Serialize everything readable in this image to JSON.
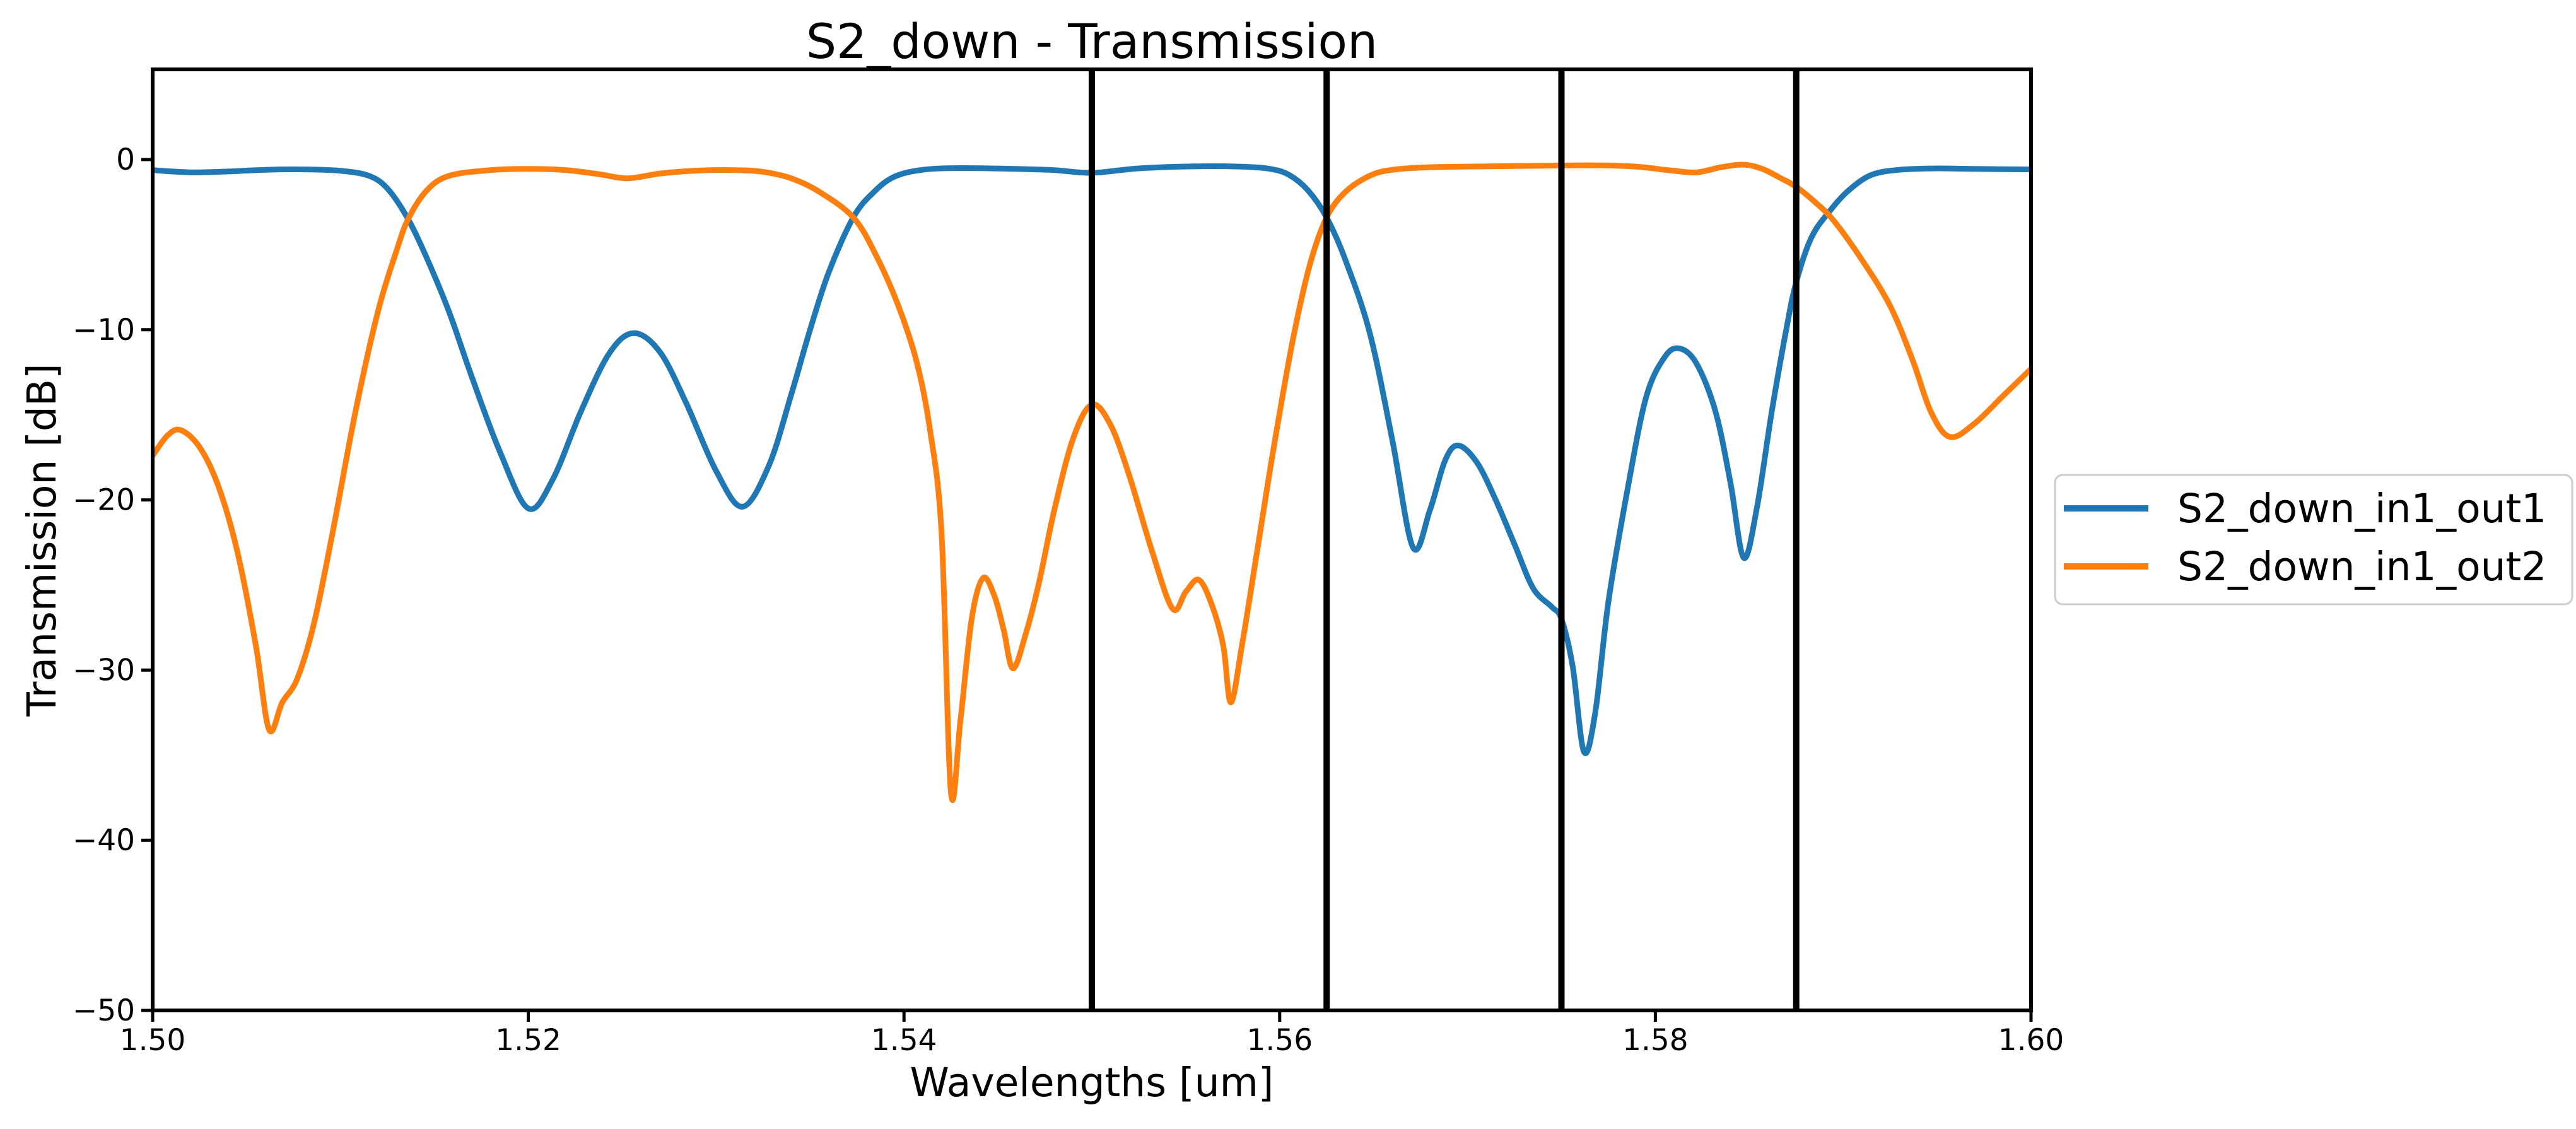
{
  "figure": {
    "background": "#ffffff",
    "spine_color": "#000000",
    "tick_color": "#000000"
  },
  "chart_data": {
    "type": "line",
    "title": "S2_down - Transmission",
    "xlabel": "Wavelengths [um]",
    "ylabel": "Transmission [dB]",
    "xlim": [
      1.5,
      1.6
    ],
    "ylim": [
      -50,
      5.3
    ],
    "grid": false,
    "xticks": {
      "values": [
        1.5,
        1.52,
        1.54,
        1.56,
        1.58,
        1.6
      ],
      "labels": [
        "1.50",
        "1.52",
        "1.54",
        "1.56",
        "1.58",
        "1.60"
      ]
    },
    "yticks": {
      "values": [
        0,
        -10,
        -20,
        -30,
        -40,
        -50
      ],
      "labels": [
        "0",
        "−10",
        "−20",
        "−30",
        "−40",
        "−50"
      ]
    },
    "vlines": {
      "x": [
        1.55,
        1.5625,
        1.575,
        1.5875
      ],
      "color": "#000000"
    },
    "legend": {
      "position": "outside-right-center",
      "edge_color": "#cccccc",
      "face_color": "#ffffff"
    },
    "series": [
      {
        "name": "S2_down_in1_out1",
        "color": "#1f77b4",
        "points": [
          [
            1.5,
            -0.62
          ],
          [
            1.502,
            -0.75
          ],
          [
            1.504,
            -0.7
          ],
          [
            1.506,
            -0.6
          ],
          [
            1.508,
            -0.58
          ],
          [
            1.51,
            -0.66
          ],
          [
            1.5115,
            -0.95
          ],
          [
            1.5125,
            -1.7
          ],
          [
            1.5136,
            -3.5
          ],
          [
            1.5146,
            -5.8
          ],
          [
            1.5158,
            -9.0
          ],
          [
            1.517,
            -12.8
          ],
          [
            1.5185,
            -17.2
          ],
          [
            1.52,
            -20.5
          ],
          [
            1.5213,
            -18.8
          ],
          [
            1.5228,
            -14.8
          ],
          [
            1.5243,
            -11.4
          ],
          [
            1.5256,
            -10.2
          ],
          [
            1.527,
            -11.3
          ],
          [
            1.5284,
            -14.3
          ],
          [
            1.53,
            -18.3
          ],
          [
            1.5314,
            -20.4
          ],
          [
            1.5328,
            -18.0
          ],
          [
            1.534,
            -13.8
          ],
          [
            1.535,
            -10.0
          ],
          [
            1.536,
            -6.6
          ],
          [
            1.5373,
            -3.4
          ],
          [
            1.5384,
            -1.9
          ],
          [
            1.5395,
            -1.0
          ],
          [
            1.541,
            -0.6
          ],
          [
            1.543,
            -0.5
          ],
          [
            1.546,
            -0.55
          ],
          [
            1.548,
            -0.62
          ],
          [
            1.55,
            -0.78
          ],
          [
            1.5525,
            -0.52
          ],
          [
            1.5555,
            -0.4
          ],
          [
            1.558,
            -0.42
          ],
          [
            1.5595,
            -0.55
          ],
          [
            1.5605,
            -0.9
          ],
          [
            1.5615,
            -1.8
          ],
          [
            1.5625,
            -3.4
          ],
          [
            1.5635,
            -5.9
          ],
          [
            1.5648,
            -10.2
          ],
          [
            1.566,
            -16.5
          ],
          [
            1.5671,
            -22.8
          ],
          [
            1.568,
            -20.6
          ],
          [
            1.5688,
            -17.7
          ],
          [
            1.5695,
            -16.8
          ],
          [
            1.5705,
            -17.8
          ],
          [
            1.5715,
            -20.0
          ],
          [
            1.5725,
            -22.6
          ],
          [
            1.5735,
            -25.2
          ],
          [
            1.5745,
            -26.3
          ],
          [
            1.575,
            -27.0
          ],
          [
            1.5756,
            -29.8
          ],
          [
            1.5762,
            -34.8
          ],
          [
            1.5768,
            -32.5
          ],
          [
            1.5775,
            -26.0
          ],
          [
            1.5785,
            -19.5
          ],
          [
            1.5795,
            -14.0
          ],
          [
            1.5805,
            -11.6
          ],
          [
            1.5813,
            -11.1
          ],
          [
            1.5822,
            -12.0
          ],
          [
            1.5832,
            -14.8
          ],
          [
            1.584,
            -19.0
          ],
          [
            1.5847,
            -23.4
          ],
          [
            1.5854,
            -20.5
          ],
          [
            1.5862,
            -14.8
          ],
          [
            1.587,
            -9.8
          ],
          [
            1.5875,
            -7.2
          ],
          [
            1.5883,
            -4.6
          ],
          [
            1.5893,
            -3.0
          ],
          [
            1.5903,
            -1.8
          ],
          [
            1.5915,
            -0.9
          ],
          [
            1.593,
            -0.6
          ],
          [
            1.595,
            -0.52
          ],
          [
            1.597,
            -0.55
          ],
          [
            1.6,
            -0.58
          ]
        ]
      },
      {
        "name": "S2_down_in1_out2",
        "color": "#ff7f0e",
        "points": [
          [
            1.5,
            -17.4
          ],
          [
            1.5008,
            -16.2
          ],
          [
            1.5015,
            -15.9
          ],
          [
            1.5025,
            -16.9
          ],
          [
            1.5035,
            -19.2
          ],
          [
            1.5045,
            -23.0
          ],
          [
            1.5055,
            -28.6
          ],
          [
            1.5062,
            -33.5
          ],
          [
            1.5069,
            -31.9
          ],
          [
            1.5077,
            -30.5
          ],
          [
            1.5086,
            -27.2
          ],
          [
            1.5096,
            -21.8
          ],
          [
            1.5108,
            -14.8
          ],
          [
            1.512,
            -8.9
          ],
          [
            1.513,
            -5.3
          ],
          [
            1.5136,
            -3.5
          ],
          [
            1.5146,
            -1.8
          ],
          [
            1.5158,
            -0.95
          ],
          [
            1.518,
            -0.62
          ],
          [
            1.52,
            -0.55
          ],
          [
            1.522,
            -0.62
          ],
          [
            1.5237,
            -0.85
          ],
          [
            1.5253,
            -1.1
          ],
          [
            1.527,
            -0.82
          ],
          [
            1.529,
            -0.65
          ],
          [
            1.531,
            -0.62
          ],
          [
            1.5325,
            -0.72
          ],
          [
            1.534,
            -1.1
          ],
          [
            1.5355,
            -1.9
          ],
          [
            1.5373,
            -3.4
          ],
          [
            1.5385,
            -5.6
          ],
          [
            1.5397,
            -8.6
          ],
          [
            1.5407,
            -12.0
          ],
          [
            1.5414,
            -16.0
          ],
          [
            1.542,
            -22.0
          ],
          [
            1.5425,
            -37.2
          ],
          [
            1.543,
            -33.0
          ],
          [
            1.5436,
            -27.0
          ],
          [
            1.5442,
            -24.6
          ],
          [
            1.5448,
            -25.6
          ],
          [
            1.5453,
            -27.6
          ],
          [
            1.5458,
            -29.9
          ],
          [
            1.5465,
            -27.8
          ],
          [
            1.5472,
            -24.8
          ],
          [
            1.548,
            -20.6
          ],
          [
            1.549,
            -16.4
          ],
          [
            1.55,
            -14.4
          ],
          [
            1.551,
            -15.6
          ],
          [
            1.552,
            -18.6
          ],
          [
            1.5532,
            -23.0
          ],
          [
            1.5543,
            -26.4
          ],
          [
            1.555,
            -25.4
          ],
          [
            1.5557,
            -24.7
          ],
          [
            1.5564,
            -26.2
          ],
          [
            1.557,
            -28.6
          ],
          [
            1.5574,
            -31.9
          ],
          [
            1.558,
            -28.5
          ],
          [
            1.5588,
            -23.0
          ],
          [
            1.5597,
            -16.8
          ],
          [
            1.5607,
            -10.6
          ],
          [
            1.5616,
            -6.2
          ],
          [
            1.5625,
            -3.4
          ],
          [
            1.5635,
            -1.9
          ],
          [
            1.5648,
            -0.95
          ],
          [
            1.566,
            -0.6
          ],
          [
            1.568,
            -0.45
          ],
          [
            1.571,
            -0.4
          ],
          [
            1.574,
            -0.36
          ],
          [
            1.577,
            -0.34
          ],
          [
            1.579,
            -0.42
          ],
          [
            1.5809,
            -0.65
          ],
          [
            1.5822,
            -0.75
          ],
          [
            1.5835,
            -0.45
          ],
          [
            1.5847,
            -0.3
          ],
          [
            1.5857,
            -0.55
          ],
          [
            1.5866,
            -1.05
          ],
          [
            1.5875,
            -1.6
          ],
          [
            1.5885,
            -2.5
          ],
          [
            1.5895,
            -3.6
          ],
          [
            1.591,
            -5.9
          ],
          [
            1.5925,
            -8.6
          ],
          [
            1.5937,
            -11.8
          ],
          [
            1.5947,
            -14.9
          ],
          [
            1.5957,
            -16.3
          ],
          [
            1.597,
            -15.5
          ],
          [
            1.5985,
            -13.9
          ],
          [
            1.6,
            -12.3
          ]
        ]
      }
    ]
  }
}
